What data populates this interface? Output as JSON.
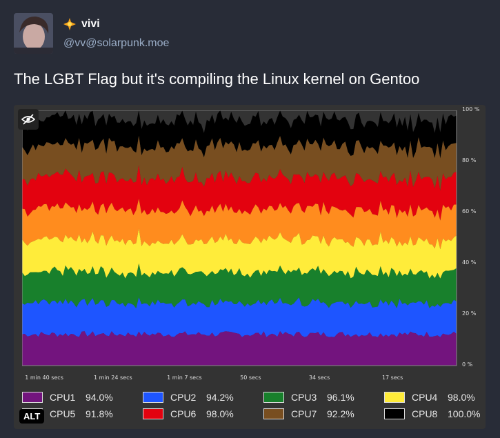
{
  "author": {
    "display_name": "vivi",
    "handle": "@vv@solarpunk.moe",
    "badge_icon": "sparkle-emoji"
  },
  "status": {
    "text": "The LGBT Flag but it's compiling the Linux kernel on Gentoo"
  },
  "media": {
    "alt_badge": "ALT",
    "hide_icon": "eye-slash-icon"
  },
  "chart_data": {
    "type": "area",
    "stacked": true,
    "y_tick_labels": [
      "100 %",
      "80 %",
      "60 %",
      "40 %",
      "20 %",
      "0 %"
    ],
    "ylim": [
      0,
      100
    ],
    "x_tick_labels": [
      "1 min 40 secs",
      "1 min 24 secs",
      "1 min 7 secs",
      "50 secs",
      "34 secs",
      "17 secs"
    ],
    "x_ticks_seconds_ago": [
      100,
      84,
      67,
      50,
      34,
      17
    ],
    "xlim_seconds_ago": [
      101,
      0
    ],
    "series": [
      {
        "name": "CPU1",
        "value_label": "94.0%",
        "color": "#73147e",
        "mean_share": 12.3
      },
      {
        "name": "CPU2",
        "value_label": "94.2%",
        "color": "#1e55ff",
        "mean_share": 12.3
      },
      {
        "name": "CPU3",
        "value_label": "96.1%",
        "color": "#18802c",
        "mean_share": 12.2
      },
      {
        "name": "CPU4",
        "value_label": "98.0%",
        "color": "#ffec3a",
        "mean_share": 12.5
      },
      {
        "name": "CPU5",
        "value_label": "91.8%",
        "color": "#ff8c1e",
        "mean_share": 12.2
      },
      {
        "name": "CPU6",
        "value_label": "98.0%",
        "color": "#e3020f",
        "mean_share": 12.3
      },
      {
        "name": "CPU7",
        "value_label": "92.2%",
        "color": "#784e20",
        "mean_share": 12.4
      },
      {
        "name": "CPU8",
        "value_label": "100.0%",
        "color": "#000000",
        "mean_share": 10.5
      }
    ]
  }
}
